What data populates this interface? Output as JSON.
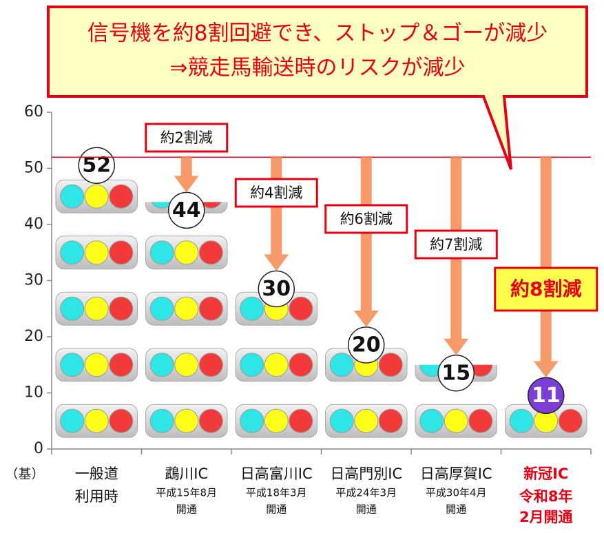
{
  "chart_data": {
    "type": "bar",
    "title": "信号機を約8割回避でき、ストップ＆ゴーが減少",
    "subtitle": "⇒競走馬輸送時のリスクが減少",
    "y_unit": "（基）",
    "categories": [
      "一般道",
      "鵡川IC",
      "日高富川IC",
      "日高門別IC",
      "日高厚賀IC",
      "新冠IC"
    ],
    "category_notes": [
      [
        "利用時"
      ],
      [
        "平成15年8月",
        "開通"
      ],
      [
        "平成18年3月",
        "開通"
      ],
      [
        "平成24年3月",
        "開通"
      ],
      [
        "平成30年4月",
        "開通"
      ],
      [
        "令和8年",
        "2月開通"
      ]
    ],
    "values": [
      52,
      44,
      30,
      20,
      15,
      11
    ],
    "reduction_labels": [
      null,
      "約2割減",
      "約4割減",
      "約6割減",
      "約7割減",
      "約8割減"
    ],
    "highlight": {
      "index": 5,
      "color": "#e60012"
    },
    "ylim": [
      0,
      60
    ],
    "yticks": [
      0,
      10,
      20,
      30,
      40,
      50,
      60
    ],
    "grid": false
  }
}
